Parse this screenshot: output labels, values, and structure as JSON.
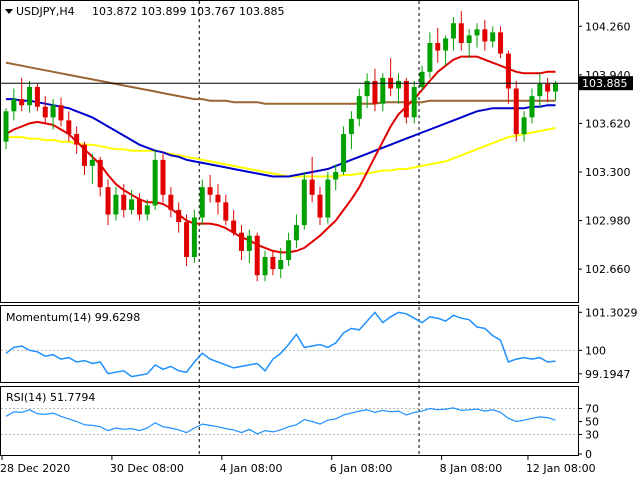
{
  "header": {
    "symbol": "USDJPY,H4",
    "ohlc": "103.872 103.899 103.767 103.885"
  },
  "colors": {
    "bull": "#00a000",
    "bear": "#e00000",
    "ma_fast": "#e00000",
    "ma_mid": "#0000cc",
    "ma_slow": "#996633",
    "ma_yellow": "#ffff00",
    "indicator": "#1e90ff",
    "grid": "#bbbbbb"
  },
  "chart_data": [
    {
      "type": "candlestick",
      "title": "USDJPY,H4",
      "ylim": [
        102.45,
        104.42
      ],
      "yticks": [
        "104.260",
        "103.940",
        "103.620",
        "103.300",
        "102.980",
        "102.660"
      ],
      "current_price": "103.885",
      "x_ticks": [
        "28 Dec 2020",
        "30 Dec 08:00",
        "4 Jan 08:00",
        "6 Jan 08:00",
        "8 Jan 08:00",
        "12 Jan 08:00"
      ],
      "candles": [
        [
          103.5,
          103.72,
          103.45,
          103.7
        ],
        [
          103.7,
          103.85,
          103.64,
          103.78
        ],
        [
          103.78,
          103.92,
          103.7,
          103.74
        ],
        [
          103.74,
          103.9,
          103.69,
          103.86
        ],
        [
          103.86,
          103.88,
          103.7,
          103.73
        ],
        [
          103.73,
          103.8,
          103.62,
          103.66
        ],
        [
          103.66,
          103.78,
          103.58,
          103.74
        ],
        [
          103.74,
          103.79,
          103.6,
          103.64
        ],
        [
          103.64,
          103.7,
          103.5,
          103.55
        ],
        [
          103.55,
          103.6,
          103.42,
          103.48
        ],
        [
          103.48,
          103.5,
          103.28,
          103.34
        ],
        [
          103.34,
          103.42,
          103.22,
          103.38
        ],
        [
          103.38,
          103.4,
          103.14,
          103.2
        ],
        [
          103.2,
          103.25,
          102.95,
          103.02
        ],
        [
          103.02,
          103.2,
          102.98,
          103.15
        ],
        [
          103.15,
          103.22,
          103.0,
          103.05
        ],
        [
          103.05,
          103.18,
          103.02,
          103.12
        ],
        [
          103.12,
          103.16,
          102.98,
          103.02
        ],
        [
          103.02,
          103.12,
          102.98,
          103.08
        ],
        [
          103.08,
          103.45,
          103.05,
          103.38
        ],
        [
          103.38,
          103.42,
          103.1,
          103.15
        ],
        [
          103.15,
          103.2,
          103.0,
          103.05
        ],
        [
          103.05,
          103.1,
          102.9,
          102.97
        ],
        [
          102.97,
          103.02,
          102.68,
          102.74
        ],
        [
          102.74,
          103.05,
          102.7,
          103.0
        ],
        [
          103.0,
          103.25,
          102.95,
          103.2
        ],
        [
          103.2,
          103.28,
          103.1,
          103.15
        ],
        [
          103.15,
          103.22,
          103.02,
          103.1
        ],
        [
          103.1,
          103.15,
          102.95,
          102.98
        ],
        [
          102.98,
          103.05,
          102.88,
          102.9
        ],
        [
          102.9,
          102.95,
          102.72,
          102.78
        ],
        [
          102.78,
          102.92,
          102.7,
          102.88
        ],
        [
          102.88,
          102.9,
          102.58,
          102.62
        ],
        [
          102.62,
          102.78,
          102.58,
          102.74
        ],
        [
          102.74,
          102.78,
          102.62,
          102.66
        ],
        [
          102.66,
          102.8,
          102.6,
          102.72
        ],
        [
          102.72,
          102.9,
          102.68,
          102.85
        ],
        [
          102.85,
          103.02,
          102.8,
          102.95
        ],
        [
          102.95,
          103.3,
          102.92,
          103.25
        ],
        [
          103.25,
          103.4,
          103.1,
          103.15
        ],
        [
          103.15,
          103.2,
          102.95,
          103.0
        ],
        [
          103.0,
          103.3,
          102.96,
          103.25
        ],
        [
          103.25,
          103.35,
          103.18,
          103.3
        ],
        [
          103.3,
          103.6,
          103.28,
          103.55
        ],
        [
          103.55,
          103.7,
          103.45,
          103.65
        ],
        [
          103.65,
          103.85,
          103.6,
          103.8
        ],
        [
          103.8,
          103.95,
          103.72,
          103.9
        ],
        [
          103.9,
          103.98,
          103.7,
          103.75
        ],
        [
          103.75,
          103.95,
          103.7,
          103.92
        ],
        [
          103.92,
          104.05,
          103.8,
          103.85
        ],
        [
          103.85,
          103.95,
          103.75,
          103.9
        ],
        [
          103.9,
          103.92,
          103.62,
          103.66
        ],
        [
          103.66,
          103.9,
          103.62,
          103.86
        ],
        [
          103.86,
          104.0,
          103.84,
          103.96
        ],
        [
          103.96,
          104.22,
          103.92,
          104.15
        ],
        [
          104.15,
          104.25,
          104.02,
          104.1
        ],
        [
          104.1,
          104.2,
          104.0,
          104.18
        ],
        [
          104.18,
          104.32,
          104.1,
          104.28
        ],
        [
          104.28,
          104.36,
          104.1,
          104.15
        ],
        [
          104.15,
          104.24,
          104.05,
          104.2
        ],
        [
          104.2,
          104.28,
          104.12,
          104.24
        ],
        [
          104.24,
          104.3,
          104.1,
          104.16
        ],
        [
          104.16,
          104.26,
          104.12,
          104.22
        ],
        [
          104.22,
          104.26,
          104.05,
          104.08
        ],
        [
          104.08,
          104.1,
          103.75,
          103.85
        ],
        [
          103.85,
          103.9,
          103.5,
          103.55
        ],
        [
          103.55,
          103.7,
          103.5,
          103.66
        ],
        [
          103.66,
          103.85,
          103.62,
          103.8
        ],
        [
          103.8,
          103.95,
          103.72,
          103.88
        ],
        [
          103.88,
          103.92,
          103.76,
          103.83
        ],
        [
          103.83,
          103.9,
          103.77,
          103.885
        ]
      ],
      "ma_fast": [
        103.55,
        103.58,
        103.6,
        103.62,
        103.63,
        103.62,
        103.61,
        103.58,
        103.55,
        103.5,
        103.45,
        103.4,
        103.35,
        103.28,
        103.22,
        103.18,
        103.15,
        103.12,
        103.1,
        103.1,
        103.09,
        103.06,
        103.02,
        102.98,
        102.96,
        102.96,
        102.96,
        102.95,
        102.93,
        102.9,
        102.87,
        102.85,
        102.82,
        102.8,
        102.78,
        102.77,
        102.77,
        102.78,
        102.8,
        102.84,
        102.88,
        102.93,
        102.98,
        103.05,
        103.12,
        103.2,
        103.3,
        103.4,
        103.5,
        103.6,
        103.68,
        103.73,
        103.78,
        103.84,
        103.9,
        103.96,
        104.0,
        104.04,
        104.06,
        104.06,
        104.06,
        104.04,
        104.02,
        104.0,
        103.98,
        103.96,
        103.95,
        103.95,
        103.95,
        103.96,
        103.96
      ],
      "ma_mid": [
        103.78,
        103.78,
        103.77,
        103.77,
        103.76,
        103.75,
        103.74,
        103.73,
        103.72,
        103.7,
        103.68,
        103.66,
        103.63,
        103.6,
        103.57,
        103.54,
        103.51,
        103.48,
        103.46,
        103.44,
        103.43,
        103.41,
        103.4,
        103.38,
        103.37,
        103.36,
        103.35,
        103.34,
        103.33,
        103.32,
        103.31,
        103.3,
        103.29,
        103.28,
        103.27,
        103.27,
        103.27,
        103.28,
        103.29,
        103.3,
        103.31,
        103.32,
        103.34,
        103.36,
        103.38,
        103.4,
        103.42,
        103.44,
        103.46,
        103.48,
        103.5,
        103.52,
        103.54,
        103.56,
        103.58,
        103.6,
        103.62,
        103.64,
        103.66,
        103.68,
        103.7,
        103.71,
        103.72,
        103.72,
        103.72,
        103.72,
        103.72,
        103.73,
        103.73,
        103.74,
        103.74
      ],
      "ma_slow": [
        104.02,
        104.01,
        104.0,
        103.99,
        103.98,
        103.97,
        103.96,
        103.95,
        103.94,
        103.93,
        103.92,
        103.91,
        103.9,
        103.89,
        103.88,
        103.87,
        103.86,
        103.85,
        103.84,
        103.83,
        103.82,
        103.81,
        103.8,
        103.79,
        103.78,
        103.78,
        103.77,
        103.77,
        103.77,
        103.76,
        103.76,
        103.76,
        103.76,
        103.75,
        103.75,
        103.75,
        103.75,
        103.75,
        103.75,
        103.75,
        103.75,
        103.75,
        103.75,
        103.75,
        103.75,
        103.75,
        103.75,
        103.75,
        103.76,
        103.76,
        103.76,
        103.76,
        103.76,
        103.76,
        103.77,
        103.77,
        103.77,
        103.77,
        103.77,
        103.77,
        103.77,
        103.77,
        103.77,
        103.77,
        103.77,
        103.77,
        103.77,
        103.77,
        103.77,
        103.77,
        103.77
      ],
      "ma_yellow": [
        103.53,
        103.53,
        103.53,
        103.52,
        103.52,
        103.51,
        103.51,
        103.5,
        103.5,
        103.49,
        103.48,
        103.48,
        103.47,
        103.46,
        103.45,
        103.45,
        103.44,
        103.44,
        103.44,
        103.44,
        103.43,
        103.42,
        103.41,
        103.4,
        103.39,
        103.38,
        103.37,
        103.36,
        103.35,
        103.34,
        103.33,
        103.32,
        103.31,
        103.3,
        103.29,
        103.28,
        103.27,
        103.27,
        103.27,
        103.27,
        103.27,
        103.27,
        103.27,
        103.28,
        103.28,
        103.29,
        103.29,
        103.3,
        103.31,
        103.31,
        103.32,
        103.32,
        103.33,
        103.34,
        103.35,
        103.36,
        103.37,
        103.39,
        103.41,
        103.43,
        103.45,
        103.47,
        103.49,
        103.51,
        103.53,
        103.54,
        103.55,
        103.56,
        103.57,
        103.58,
        103.59
      ]
    },
    {
      "type": "line",
      "title": "Momentum(14) 99.6298",
      "ylim": [
        98.95,
        101.45
      ],
      "yticks": [
        "101.3029",
        "100",
        "99.1947"
      ],
      "ref_level": 100,
      "values": [
        99.9,
        100.1,
        100.15,
        100.0,
        99.95,
        99.8,
        99.85,
        99.7,
        99.75,
        99.6,
        99.65,
        99.55,
        99.6,
        99.2,
        99.25,
        99.3,
        99.1,
        99.15,
        99.2,
        99.5,
        99.35,
        99.45,
        99.3,
        99.25,
        99.6,
        99.9,
        99.7,
        99.6,
        99.5,
        99.4,
        99.45,
        99.5,
        99.55,
        99.3,
        99.7,
        99.9,
        100.2,
        100.55,
        100.1,
        100.15,
        100.2,
        100.1,
        100.25,
        100.6,
        100.75,
        100.7,
        101.0,
        101.3,
        100.95,
        101.15,
        101.3,
        101.25,
        101.1,
        100.95,
        101.15,
        101.1,
        101.0,
        101.2,
        101.1,
        101.05,
        100.8,
        100.75,
        100.5,
        100.35,
        99.6,
        99.7,
        99.75,
        99.7,
        99.75,
        99.6,
        99.63
      ]
    },
    {
      "type": "line",
      "title": "RSI(14) 51.7794",
      "ylim": [
        0,
        100
      ],
      "yticks": [
        "70",
        "50",
        "30",
        "0"
      ],
      "levels": [
        70,
        30
      ],
      "values": [
        58,
        65,
        64,
        68,
        62,
        61,
        63,
        58,
        54,
        50,
        45,
        44,
        42,
        36,
        40,
        38,
        39,
        36,
        40,
        48,
        42,
        40,
        37,
        33,
        40,
        46,
        44,
        42,
        39,
        37,
        33,
        38,
        31,
        36,
        34,
        37,
        42,
        45,
        53,
        50,
        46,
        52,
        54,
        60,
        63,
        66,
        68,
        64,
        67,
        65,
        66,
        60,
        64,
        66,
        70,
        68,
        69,
        71,
        67,
        68,
        69,
        66,
        68,
        64,
        55,
        50,
        52,
        55,
        57,
        56,
        52
      ]
    }
  ]
}
